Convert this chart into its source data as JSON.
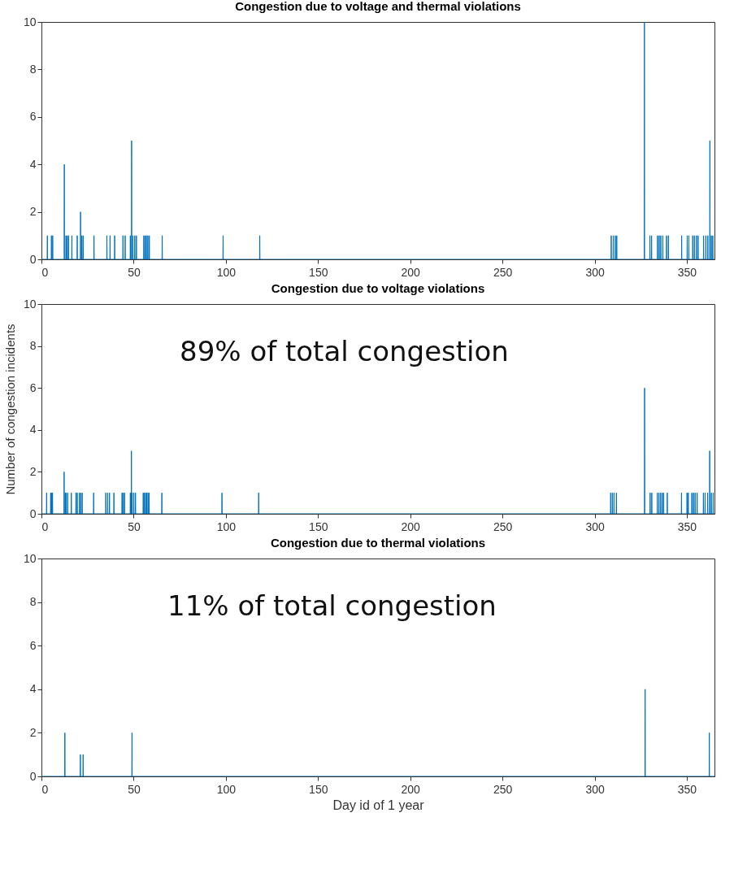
{
  "chart_data": [
    {
      "type": "line",
      "title": "Congestion due to voltage and thermal violations",
      "color": "#0072bd",
      "xlim": [
        0,
        365
      ],
      "xticks": [
        0,
        50,
        100,
        150,
        200,
        250,
        300,
        350
      ],
      "ylim": [
        0,
        10
      ],
      "yticks": [
        0,
        2,
        4,
        6,
        8,
        10
      ],
      "x": [
        0,
        3.1,
        3.2,
        3.3,
        5.3,
        5.4,
        5.5,
        6.0,
        6.1,
        6.2,
        12.3,
        12.4,
        12.5,
        13.2,
        13.3,
        13.4,
        13.9,
        14.0,
        14.1,
        14.6,
        14.7,
        14.8,
        16.4,
        16.5,
        16.6,
        19.3,
        19.4,
        19.5,
        21.1,
        21.2,
        21.3,
        21.8,
        21.9,
        22.0,
        22.5,
        22.6,
        22.7,
        28.4,
        28.5,
        28.6,
        35.4,
        35.5,
        35.6,
        37.1,
        37.2,
        37.3,
        39.6,
        39.7,
        39.8,
        44.1,
        44.2,
        44.3,
        45.3,
        45.4,
        45.5,
        48.1,
        48.2,
        48.3,
        48.8,
        48.9,
        49.0,
        49.5,
        49.6,
        49.7,
        50.5,
        50.6,
        50.7,
        51.4,
        51.5,
        51.6,
        55.4,
        55.5,
        55.6,
        56.1,
        56.2,
        56.3,
        56.8,
        56.9,
        57.0,
        57.6,
        57.7,
        57.8,
        58.4,
        58.5,
        58.6,
        65.4,
        65.5,
        65.6,
        98.4,
        98.5,
        98.6,
        118.3,
        118.4,
        118.5,
        308.9,
        309.0,
        309.1,
        310.0,
        310.1,
        310.2,
        311.1,
        311.2,
        311.3,
        311.9,
        312.0,
        312.1,
        326.9,
        327.0,
        327.1,
        329.9,
        330.0,
        330.1,
        330.8,
        330.9,
        331.0,
        334.0,
        334.1,
        334.2,
        334.9,
        335.0,
        335.1,
        335.8,
        335.9,
        336.0,
        336.9,
        337.0,
        337.1,
        338.9,
        339.0,
        339.1,
        339.9,
        340.0,
        340.1,
        347.1,
        347.2,
        347.3,
        350.1,
        350.2,
        350.3,
        351.0,
        351.1,
        351.2,
        353.1,
        353.2,
        353.3,
        354.0,
        354.1,
        354.2,
        355.1,
        355.2,
        355.3,
        356.0,
        356.1,
        356.2,
        359.0,
        359.1,
        359.2,
        360.2,
        360.3,
        360.4,
        361.3,
        361.4,
        361.5,
        362.4,
        362.5,
        362.6,
        363.2,
        363.3,
        363.4,
        364.0,
        364.1,
        364.2,
        365
      ],
      "values": [
        0,
        0,
        1,
        0,
        0,
        1,
        0,
        0,
        1,
        0,
        0,
        4,
        0,
        0,
        1,
        0,
        0,
        1,
        0,
        0,
        1,
        0,
        0,
        1,
        0,
        0,
        1,
        0,
        0,
        2,
        0,
        0,
        1,
        0,
        0,
        1,
        0,
        0,
        1,
        0,
        0,
        1,
        0,
        0,
        1,
        0,
        0,
        1,
        0,
        0,
        1,
        0,
        0,
        1,
        0,
        0,
        1,
        0,
        0,
        5,
        0,
        0,
        1,
        0,
        0,
        1,
        0,
        0,
        1,
        0,
        0,
        1,
        0,
        0,
        1,
        0,
        0,
        1,
        0,
        0,
        1,
        0,
        0,
        1,
        0,
        0,
        1,
        0,
        0,
        1,
        0,
        0,
        1,
        0,
        0,
        1,
        0,
        0,
        1,
        0,
        0,
        1,
        0,
        0,
        1,
        0,
        0,
        10,
        0,
        0,
        1,
        0,
        0,
        1,
        0,
        0,
        1,
        0,
        0,
        1,
        0,
        0,
        1,
        0,
        0,
        1,
        0,
        0,
        1,
        0,
        0,
        1,
        0,
        0,
        1,
        0,
        0,
        1,
        0,
        0,
        1,
        0,
        0,
        1,
        0,
        0,
        1,
        0,
        0,
        1,
        0,
        0,
        1,
        0,
        0,
        1,
        0,
        0,
        1,
        0,
        0,
        1,
        0,
        0,
        5,
        0,
        0,
        1,
        0,
        0,
        1,
        0,
        0
      ]
    },
    {
      "type": "line",
      "title": "Congestion due to voltage violations",
      "ylabel": "Number of congestion incidents",
      "annotations": [
        "89% of total congestion"
      ],
      "color": "#0072bd",
      "xlim": [
        0,
        365
      ],
      "xticks": [
        0,
        50,
        100,
        150,
        200,
        250,
        300,
        350
      ],
      "ylim": [
        0,
        10
      ],
      "yticks": [
        0,
        2,
        4,
        6,
        8,
        10
      ],
      "x": [
        0,
        2.7,
        2.8,
        2.9,
        4.9,
        5.0,
        5.1,
        5.5,
        5.6,
        5.7,
        5.9,
        6.0,
        6.1,
        12.2,
        12.3,
        12.4,
        12.8,
        12.9,
        13.0,
        13.2,
        13.3,
        13.4,
        14.1,
        14.2,
        14.3,
        16.1,
        16.2,
        16.3,
        18.6,
        18.7,
        18.8,
        19.3,
        19.4,
        19.5,
        20.5,
        20.6,
        20.7,
        21.2,
        21.3,
        21.4,
        22.0,
        22.1,
        22.2,
        28.2,
        28.3,
        28.4,
        34.8,
        34.9,
        35.0,
        35.8,
        35.9,
        36.0,
        36.8,
        36.9,
        37.0,
        39.2,
        39.3,
        39.4,
        43.6,
        43.7,
        43.8,
        44.3,
        44.4,
        44.5,
        45.0,
        45.1,
        45.2,
        48.1,
        48.2,
        48.3,
        48.7,
        48.8,
        48.9,
        49.1,
        49.2,
        49.3,
        50.0,
        50.1,
        50.2,
        50.9,
        51.0,
        51.1,
        55.1,
        55.2,
        55.3,
        55.7,
        55.8,
        55.9,
        56.4,
        56.5,
        56.6,
        57.0,
        57.1,
        57.2,
        57.7,
        57.8,
        57.9,
        58.3,
        58.4,
        58.5,
        65.2,
        65.3,
        65.4,
        97.8,
        97.9,
        98.0,
        117.7,
        117.8,
        117.9,
        308.6,
        308.7,
        308.8,
        309.5,
        309.6,
        309.7,
        310.4,
        310.5,
        310.6,
        311.7,
        311.8,
        311.9,
        327.0,
        327.1,
        327.2,
        330.0,
        330.1,
        330.2,
        330.9,
        331.0,
        331.1,
        333.9,
        334.0,
        334.1,
        334.8,
        334.9,
        335.0,
        335.7,
        335.8,
        335.9,
        336.6,
        336.7,
        336.8,
        337.3,
        337.4,
        337.5,
        339.3,
        339.4,
        339.5,
        347.0,
        347.1,
        347.2,
        350.0,
        350.1,
        350.2,
        350.7,
        350.8,
        350.9,
        352.6,
        352.7,
        352.8,
        353.5,
        353.6,
        353.7,
        354.4,
        354.5,
        354.6,
        355.5,
        355.6,
        355.7,
        358.9,
        359.0,
        359.1,
        359.8,
        359.9,
        360.0,
        361.2,
        361.3,
        361.4,
        362.3,
        362.4,
        362.5,
        363.2,
        363.3,
        363.4,
        364.2,
        364.3,
        364.4,
        365
      ],
      "values": [
        0,
        0,
        1,
        0,
        0,
        1,
        0,
        0,
        1,
        0,
        0,
        1,
        0,
        0,
        2,
        0,
        0,
        1,
        0,
        0,
        1,
        0,
        0,
        1,
        0,
        0,
        1,
        0,
        0,
        1,
        0,
        0,
        1,
        0,
        0,
        1,
        0,
        0,
        1,
        0,
        0,
        1,
        0,
        0,
        1,
        0,
        0,
        1,
        0,
        0,
        1,
        0,
        0,
        1,
        0,
        0,
        1,
        0,
        0,
        1,
        0,
        0,
        1,
        0,
        0,
        1,
        0,
        0,
        1,
        0,
        0,
        3,
        0,
        0,
        1,
        0,
        0,
        1,
        0,
        0,
        1,
        0,
        0,
        1,
        0,
        0,
        1,
        0,
        0,
        1,
        0,
        0,
        1,
        0,
        0,
        1,
        0,
        0,
        1,
        0,
        0,
        1,
        0,
        0,
        1,
        0,
        0,
        1,
        0,
        0,
        1,
        0,
        0,
        1,
        0,
        0,
        1,
        0,
        0,
        1,
        0,
        0,
        6,
        0,
        0,
        1,
        0,
        0,
        1,
        0,
        0,
        1,
        0,
        0,
        1,
        0,
        0,
        1,
        0,
        0,
        1,
        0,
        0,
        1,
        0,
        0,
        1,
        0,
        0,
        1,
        0,
        0,
        1,
        0,
        0,
        1,
        0,
        0,
        1,
        0,
        0,
        1,
        0,
        0,
        1,
        0,
        0,
        1,
        0,
        0,
        1,
        0,
        0,
        1,
        0,
        0,
        1,
        0,
        0,
        3,
        0,
        0,
        1,
        0,
        0,
        1,
        0,
        0
      ]
    },
    {
      "type": "line",
      "title": "Congestion due to thermal violations",
      "xlabel": "Day id of 1 year",
      "annotations": [
        "11% of total congestion"
      ],
      "color": "#0072bd",
      "xlim": [
        0,
        365
      ],
      "xticks": [
        0,
        50,
        100,
        150,
        200,
        250,
        300,
        350
      ],
      "ylim": [
        0,
        10
      ],
      "yticks": [
        0,
        2,
        4,
        6,
        8,
        10
      ],
      "x": [
        0,
        12.6,
        12.7,
        12.8,
        21.0,
        21.1,
        21.2,
        22.5,
        22.6,
        22.7,
        49.0,
        49.1,
        49.2,
        327.3,
        327.4,
        327.5,
        362.1,
        362.2,
        362.3,
        365
      ],
      "values": [
        0,
        0,
        2,
        0,
        0,
        1,
        0,
        0,
        1,
        0,
        0,
        2,
        0,
        0,
        4,
        0,
        0,
        2,
        0,
        0
      ]
    }
  ]
}
